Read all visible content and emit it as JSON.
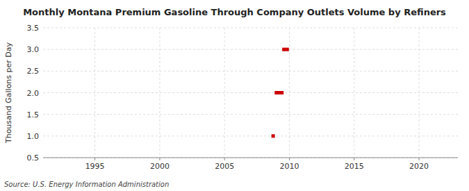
{
  "chart_data": {
    "type": "scatter",
    "title": "Monthly Montana Premium Gasoline Through Company Outlets Volume by Refiners",
    "y_label": "Thousand Gallons per Day",
    "source": "Source: U.S. Energy Information Administration",
    "x": [
      2008.75,
      2009.0,
      2009.08,
      2009.17,
      2009.25,
      2009.33,
      2009.42,
      2009.58,
      2009.83
    ],
    "values": [
      1.0,
      2.0,
      2.0,
      2.0,
      2.0,
      2.0,
      2.0,
      3.0,
      3.0
    ],
    "color": "#cc0000",
    "marker": "square",
    "xlim": [
      1991,
      2023
    ],
    "ylim": [
      0.5,
      3.5
    ],
    "xticks": [
      1995,
      2000,
      2005,
      2010,
      2015,
      2020
    ],
    "yticks": [
      0.5,
      {
        "value": 1.0,
        "label": "1.0"
      },
      1.5,
      {
        "value": 2.0,
        "label": "2.0"
      },
      2.5,
      {
        "value": 3.0,
        "label": "3.0"
      },
      3.5
    ],
    "grid": true
  }
}
